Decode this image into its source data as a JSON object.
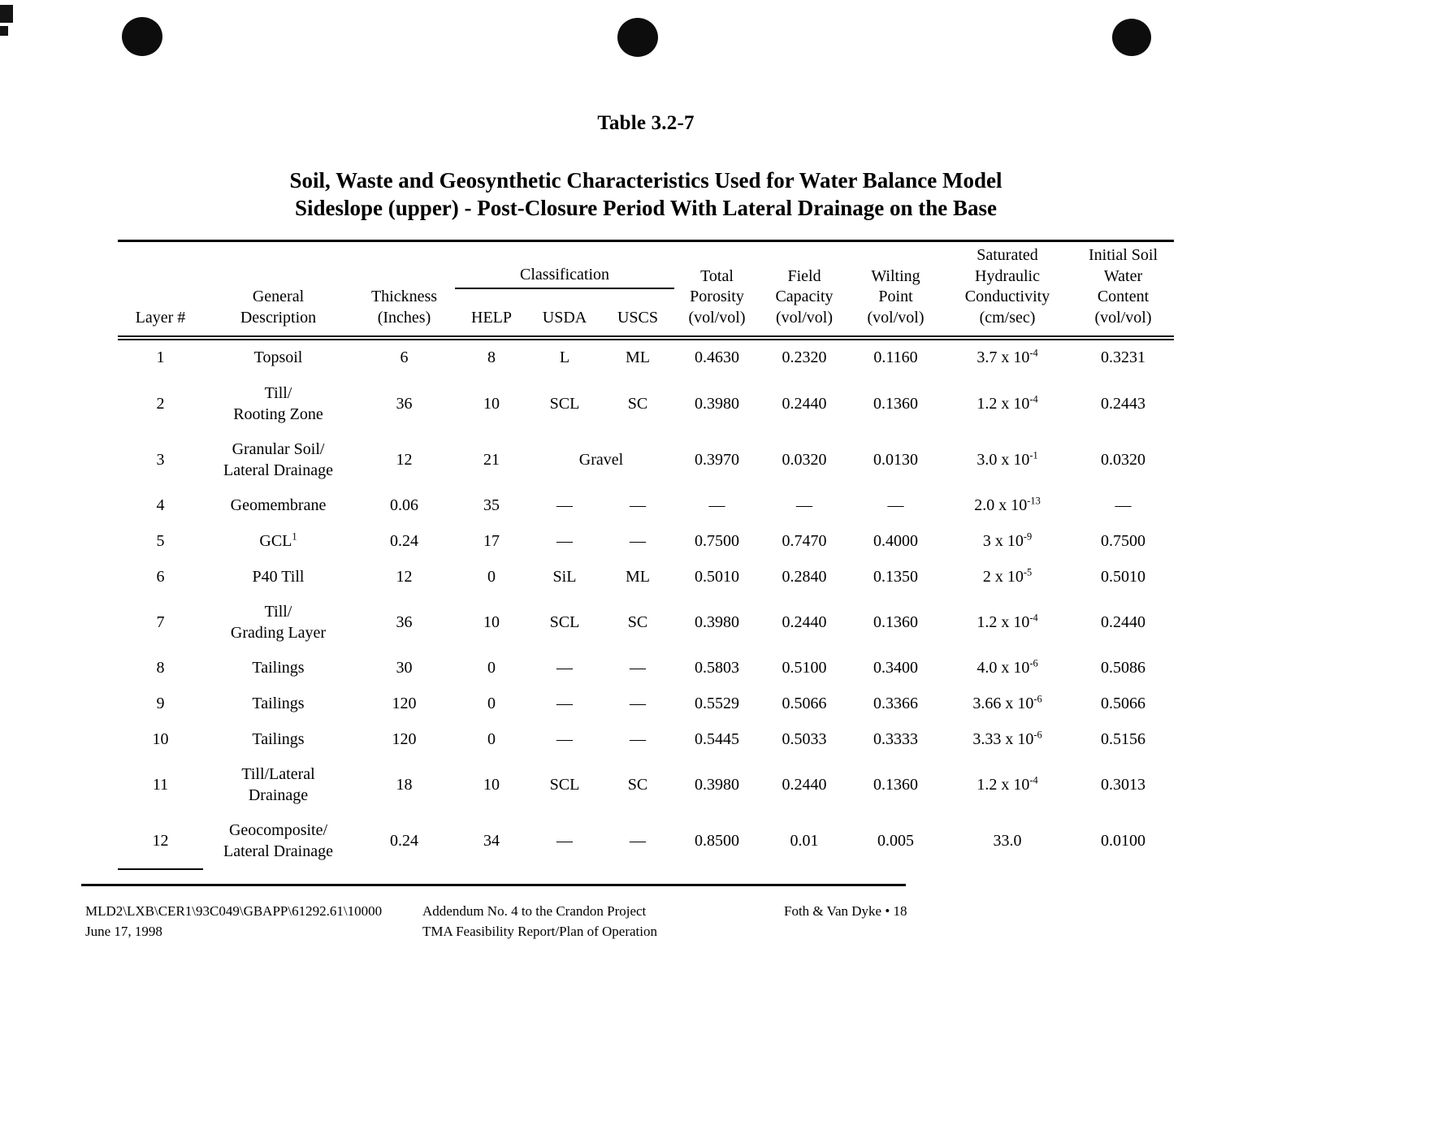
{
  "page": {
    "title": "Table 3.2-7",
    "subtitle_line1": "Soil, Waste and Geosynthetic Characteristics Used for Water Balance Model",
    "subtitle_line2": "Sideslope (upper) - Post-Closure Period With Lateral Drainage on the Base"
  },
  "table": {
    "group_header": "Classification",
    "columns": {
      "layer": "Layer #",
      "description": "General\nDescription",
      "thickness": "Thickness\n(Inches)",
      "help": "HELP",
      "usda": "USDA",
      "uscs": "USCS",
      "porosity": "Total\nPorosity\n(vol/vol)",
      "field_capacity": "Field\nCapacity\n(vol/vol)",
      "wilting_point": "Wilting\nPoint\n(vol/vol)",
      "conductivity": "Saturated\nHydraulic\nConductivity\n(cm/sec)",
      "initial_water": "Initial Soil\nWater\nContent\n(vol/vol)"
    },
    "rows": [
      {
        "layer": "1",
        "description": "Topsoil",
        "thickness": "6",
        "help": "8",
        "usda": "L",
        "uscs": "ML",
        "porosity": "0.4630",
        "field_capacity": "0.2320",
        "wilting_point": "0.1160",
        "conductivity": "3.7 x 10^-4",
        "initial_water": "0.3231"
      },
      {
        "layer": "2",
        "description": "Till/\nRooting Zone",
        "thickness": "36",
        "help": "10",
        "usda": "SCL",
        "uscs": "SC",
        "porosity": "0.3980",
        "field_capacity": "0.2440",
        "wilting_point": "0.1360",
        "conductivity": "1.2 x 10^-4",
        "initial_water": "0.2443"
      },
      {
        "layer": "3",
        "description": "Granular Soil/\nLateral Drainage",
        "thickness": "12",
        "help": "21",
        "usda": "Gravel",
        "usda_colspan": 2,
        "porosity": "0.3970",
        "field_capacity": "0.0320",
        "wilting_point": "0.0130",
        "conductivity": "3.0 x 10^-1",
        "initial_water": "0.0320"
      },
      {
        "layer": "4",
        "description": "Geomembrane",
        "thickness": "0.06",
        "help": "35",
        "usda": "—",
        "uscs": "—",
        "porosity": "—",
        "field_capacity": "—",
        "wilting_point": "—",
        "conductivity": "2.0 x 10^-13",
        "initial_water": "—"
      },
      {
        "layer": "5",
        "description": "GCL^1",
        "thickness": "0.24",
        "help": "17",
        "usda": "—",
        "uscs": "—",
        "porosity": "0.7500",
        "field_capacity": "0.7470",
        "wilting_point": "0.4000",
        "conductivity": "3 x 10^-9",
        "initial_water": "0.7500"
      },
      {
        "layer": "6",
        "description": "P40 Till",
        "thickness": "12",
        "help": "0",
        "usda": "SiL",
        "uscs": "ML",
        "porosity": "0.5010",
        "field_capacity": "0.2840",
        "wilting_point": "0.1350",
        "conductivity": "2 x 10^-5",
        "initial_water": "0.5010"
      },
      {
        "layer": "7",
        "description": "Till/\nGrading Layer",
        "thickness": "36",
        "help": "10",
        "usda": "SCL",
        "uscs": "SC",
        "porosity": "0.3980",
        "field_capacity": "0.2440",
        "wilting_point": "0.1360",
        "conductivity": "1.2 x 10^-4",
        "initial_water": "0.2440"
      },
      {
        "layer": "8",
        "description": "Tailings",
        "thickness": "30",
        "help": "0",
        "usda": "—",
        "uscs": "—",
        "porosity": "0.5803",
        "field_capacity": "0.5100",
        "wilting_point": "0.3400",
        "conductivity": "4.0 x 10^-6",
        "initial_water": "0.5086"
      },
      {
        "layer": "9",
        "description": "Tailings",
        "thickness": "120",
        "help": "0",
        "usda": "—",
        "uscs": "—",
        "porosity": "0.5529",
        "field_capacity": "0.5066",
        "wilting_point": "0.3366",
        "conductivity": "3.66 x 10^-6",
        "initial_water": "0.5066"
      },
      {
        "layer": "10",
        "description": "Tailings",
        "thickness": "120",
        "help": "0",
        "usda": "—",
        "uscs": "—",
        "porosity": "0.5445",
        "field_capacity": "0.5033",
        "wilting_point": "0.3333",
        "conductivity": "3.33 x 10^-6",
        "initial_water": "0.5156"
      },
      {
        "layer": "11",
        "description": "Till/Lateral\nDrainage",
        "thickness": "18",
        "help": "10",
        "usda": "SCL",
        "uscs": "SC",
        "porosity": "0.3980",
        "field_capacity": "0.2440",
        "wilting_point": "0.1360",
        "conductivity": "1.2 x 10^-4",
        "initial_water": "0.3013"
      },
      {
        "layer": "12",
        "description": "Geocomposite/\nLateral Drainage",
        "thickness": "0.24",
        "help": "34",
        "usda": "—",
        "uscs": "—",
        "porosity": "0.8500",
        "field_capacity": "0.01",
        "wilting_point": "0.005",
        "conductivity": "33.0",
        "initial_water": "0.0100"
      }
    ]
  },
  "footer": {
    "left_line1": "MLD2\\LXB\\CER1\\93C049\\GBAPP\\61292.61\\10000",
    "left_line2": "June 17, 1998",
    "center_line1": "Addendum No. 4 to the Crandon Project",
    "center_line2": "TMA Feasibility Report/Plan of Operation",
    "right": "Foth & Van Dyke • 18"
  }
}
